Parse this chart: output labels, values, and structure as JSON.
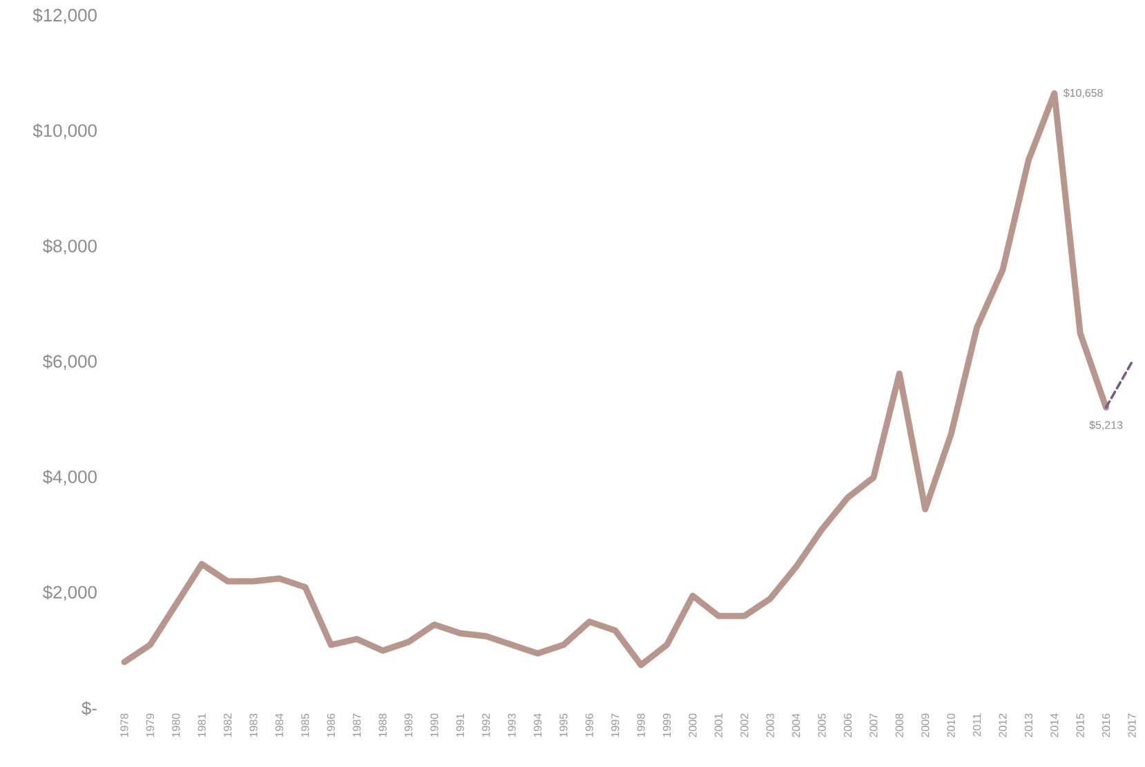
{
  "chart_data": {
    "type": "line",
    "categories": [
      "1978",
      "1979",
      "1980",
      "1981",
      "1982",
      "1983",
      "1984",
      "1985",
      "1986",
      "1987",
      "1988",
      "1989",
      "1990",
      "1991",
      "1992",
      "1993",
      "1994",
      "1995",
      "1996",
      "1997",
      "1998",
      "1999",
      "2000",
      "2001",
      "2002",
      "2003",
      "2004",
      "2005",
      "2006",
      "2007",
      "2008",
      "2009",
      "2010",
      "2011",
      "2012",
      "2013",
      "2014",
      "2015",
      "2016",
      "2017"
    ],
    "ylim": [
      0,
      12000
    ],
    "yticks": [
      {
        "value": 0,
        "label": "$-"
      },
      {
        "value": 2000,
        "label": "$2,000"
      },
      {
        "value": 4000,
        "label": "$4,000"
      },
      {
        "value": 6000,
        "label": "$6,000"
      },
      {
        "value": 8000,
        "label": "$8,000"
      },
      {
        "value": 10000,
        "label": "$10,000"
      },
      {
        "value": 12000,
        "label": "$12,000"
      }
    ],
    "series": [
      {
        "color": "#b8968c",
        "line_style": "solid",
        "values": [
          800,
          1100,
          1800,
          2500,
          2200,
          2200,
          2250,
          2100,
          1100,
          1200,
          1000,
          1150,
          1450,
          1300,
          1250,
          1100,
          950,
          1100,
          1500,
          1350,
          750,
          1100,
          1950,
          1600,
          1600,
          1900,
          2450,
          3100,
          3650,
          4000,
          5800,
          3450,
          4750,
          6600,
          7600,
          9500,
          10658,
          6500,
          5213,
          null
        ],
        "value_labels": [
          null,
          null,
          null,
          null,
          null,
          null,
          null,
          null,
          null,
          null,
          null,
          null,
          null,
          null,
          null,
          null,
          null,
          null,
          null,
          null,
          null,
          null,
          null,
          null,
          null,
          null,
          null,
          null,
          null,
          null,
          null,
          null,
          null,
          null,
          null,
          null,
          "$10,658",
          null,
          "$5,213",
          null
        ]
      },
      {
        "color": "#7a5a86",
        "line_style": "dashed",
        "values": [
          null,
          null,
          null,
          null,
          null,
          null,
          null,
          null,
          null,
          null,
          null,
          null,
          null,
          null,
          null,
          null,
          null,
          null,
          null,
          null,
          null,
          null,
          null,
          null,
          null,
          null,
          null,
          null,
          null,
          null,
          null,
          null,
          null,
          null,
          null,
          null,
          null,
          null,
          5213,
          6000
        ]
      }
    ],
    "grid": false,
    "marker": "none"
  }
}
